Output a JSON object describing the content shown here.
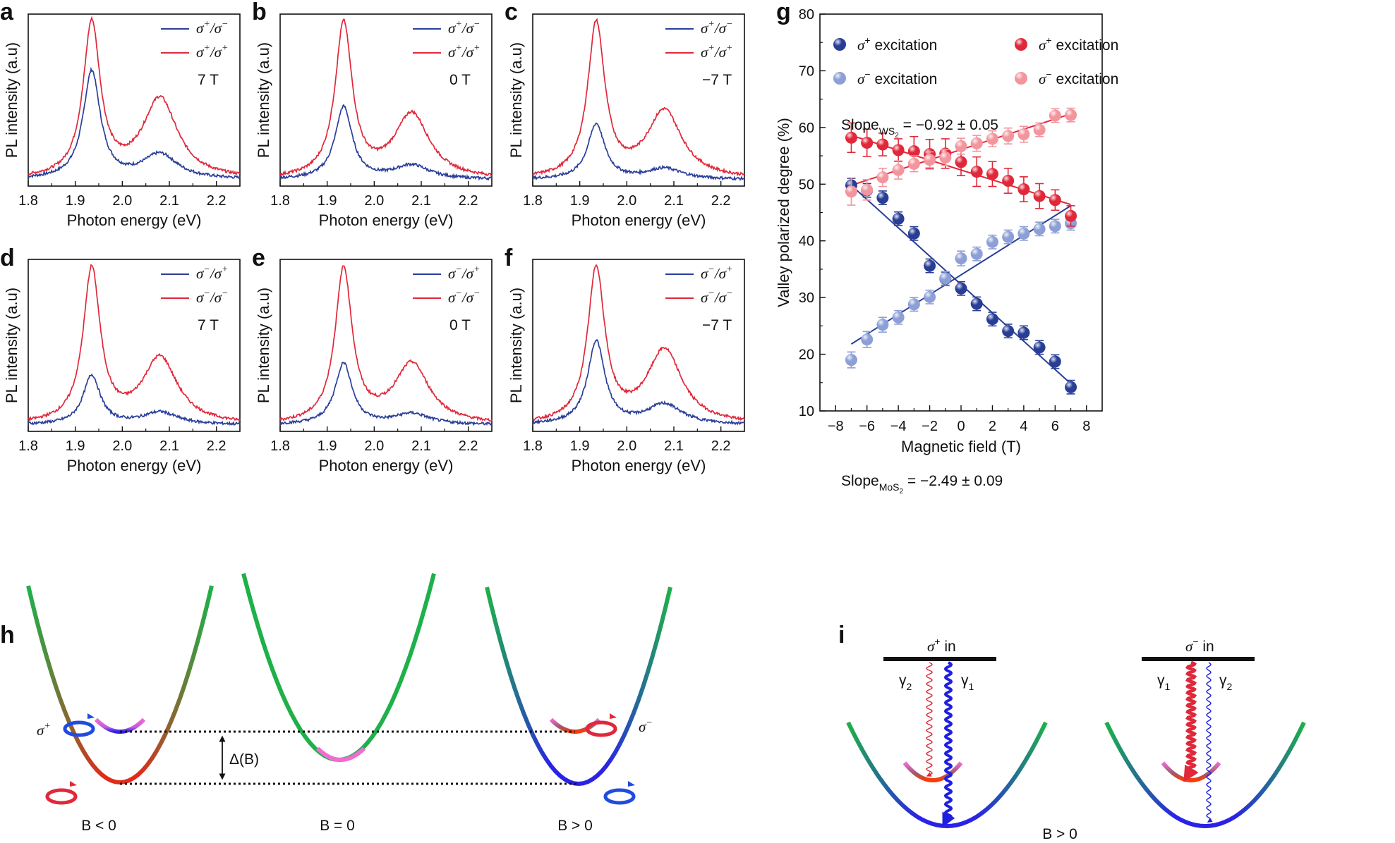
{
  "chart_data": [
    {
      "type": "line",
      "panel": "a",
      "title": "",
      "field": "7 T",
      "xlabel": "Photon energy (eV)",
      "ylabel": "PL intensity (a.u)",
      "xlim": [
        1.8,
        2.25
      ],
      "xticks": [
        "1.8",
        "1.9",
        "2.0",
        "2.1",
        "2.2"
      ],
      "series": [
        {
          "name": "σ+/σ−",
          "legend": [
            "σ",
            "+",
            "/σ",
            "−"
          ],
          "color": "#2b3f9a",
          "peak1": 0.7,
          "peak2": 0.16
        },
        {
          "name": "σ+/σ+",
          "legend": [
            "σ",
            "+",
            "/σ",
            "+"
          ],
          "color": "#e0283a",
          "peak1": 1.0,
          "peak2": 0.52
        }
      ]
    },
    {
      "type": "line",
      "panel": "b",
      "title": "",
      "field": "0 T",
      "xlabel": "Photon energy (eV)",
      "ylabel": "PL intensity (a.u)",
      "xlim": [
        1.8,
        2.25
      ],
      "xticks": [
        "1.8",
        "1.9",
        "2.0",
        "2.1",
        "2.2"
      ],
      "series": [
        {
          "name": "σ+/σ−",
          "legend": [
            "σ",
            "+",
            "/σ",
            "−"
          ],
          "color": "#2b3f9a",
          "peak1": 0.47,
          "peak2": 0.09
        },
        {
          "name": "σ+/σ+",
          "legend": [
            "σ",
            "+",
            "/σ",
            "+"
          ],
          "color": "#e0283a",
          "peak1": 1.0,
          "peak2": 0.42
        }
      ]
    },
    {
      "type": "line",
      "panel": "c",
      "title": "",
      "field": "−7 T",
      "xlabel": "Photon energy (eV)",
      "ylabel": "PL intensity (a.u)",
      "xlim": [
        1.8,
        2.25
      ],
      "xticks": [
        "1.8",
        "1.9",
        "2.0",
        "2.1",
        "2.2"
      ],
      "series": [
        {
          "name": "σ+/σ−",
          "legend": [
            "σ",
            "+",
            "/σ",
            "−"
          ],
          "color": "#2b3f9a",
          "peak1": 0.36,
          "peak2": 0.07
        },
        {
          "name": "σ+/σ+",
          "legend": [
            "σ",
            "+",
            "/σ",
            "+"
          ],
          "color": "#e0283a",
          "peak1": 1.0,
          "peak2": 0.44
        }
      ]
    },
    {
      "type": "line",
      "panel": "d",
      "title": "",
      "field": "7 T",
      "xlabel": "Photon energy (eV)",
      "ylabel": "PL intensity (a.u)",
      "xlim": [
        1.8,
        2.25
      ],
      "xticks": [
        "1.8",
        "1.9",
        "2.0",
        "2.1",
        "2.2"
      ],
      "series": [
        {
          "name": "σ−/σ+",
          "legend": [
            "σ",
            "−",
            "/σ",
            "+"
          ],
          "color": "#2b3f9a",
          "peak1": 0.32,
          "peak2": 0.08
        },
        {
          "name": "σ−/σ−",
          "legend": [
            "σ",
            "−",
            "/σ",
            "−"
          ],
          "color": "#e0283a",
          "peak1": 1.0,
          "peak2": 0.43
        }
      ]
    },
    {
      "type": "line",
      "panel": "e",
      "title": "",
      "field": "0 T",
      "xlabel": "Photon energy (eV)",
      "ylabel": "PL intensity (a.u)",
      "xlim": [
        1.8,
        2.25
      ],
      "xticks": [
        "1.8",
        "1.9",
        "2.0",
        "2.1",
        "2.2"
      ],
      "series": [
        {
          "name": "σ−/σ+",
          "legend": [
            "σ",
            "−",
            "/σ",
            "+"
          ],
          "color": "#2b3f9a",
          "peak1": 0.4,
          "peak2": 0.07
        },
        {
          "name": "σ−/σ−",
          "legend": [
            "σ",
            "−",
            "/σ",
            "−"
          ],
          "color": "#e0283a",
          "peak1": 1.0,
          "peak2": 0.39
        }
      ]
    },
    {
      "type": "line",
      "panel": "f",
      "title": "",
      "field": "−7 T",
      "xlabel": "Photon energy (eV)",
      "ylabel": "PL intensity (a.u)",
      "xlim": [
        1.8,
        2.25
      ],
      "xticks": [
        "1.8",
        "1.9",
        "2.0",
        "2.1",
        "2.2"
      ],
      "series": [
        {
          "name": "σ−/σ+",
          "legend": [
            "σ",
            "−",
            "/σ",
            "+"
          ],
          "color": "#2b3f9a",
          "peak1": 0.54,
          "peak2": 0.13
        },
        {
          "name": "σ−/σ−",
          "legend": [
            "σ",
            "−",
            "/σ",
            "−"
          ],
          "color": "#e0283a",
          "peak1": 1.0,
          "peak2": 0.48
        }
      ]
    },
    {
      "type": "scatter",
      "panel": "g",
      "title": "",
      "xlabel": "Magnetic field (T)",
      "ylabel": "Valley polarized degree (%)",
      "xlim": [
        -9,
        9
      ],
      "ylim": [
        10,
        80
      ],
      "xticks": [
        "−8",
        "−6",
        "−4",
        "−2",
        "0",
        "2",
        "4",
        "6",
        "8"
      ],
      "yticks": [
        "10",
        "20",
        "30",
        "40",
        "50",
        "60",
        "70",
        "80"
      ],
      "x": [
        -7,
        -6,
        -5,
        -4,
        -3,
        -2,
        -1,
        0,
        1,
        2,
        3,
        4,
        5,
        6,
        7
      ],
      "series": [
        {
          "name": "σ+ excitation (MoS2)",
          "label": "excitation",
          "sign": "+",
          "color": "#283e96",
          "values": [
            49.8,
            48.9,
            47.6,
            43.9,
            41.3,
            35.6,
            33.3,
            31.6,
            28.9,
            26.2,
            24.1,
            23.8,
            21.2,
            18.7,
            14.2
          ],
          "err": [
            1.2,
            1.2,
            1.2,
            1.2,
            1.2,
            1.2,
            1.2,
            1.2,
            1.2,
            1.2,
            1.2,
            1.2,
            1.2,
            1.2,
            1.2
          ]
        },
        {
          "name": "σ− excitation (MoS2)",
          "label": "excitation",
          "sign": "−",
          "color": "#8c9fd6",
          "values": [
            19.0,
            22.6,
            25.2,
            26.5,
            28.8,
            30.1,
            33.4,
            36.9,
            37.7,
            39.8,
            40.7,
            41.3,
            42.1,
            42.6,
            43.1
          ],
          "err": [
            1.4,
            1.4,
            1.3,
            1.2,
            1.2,
            1.2,
            1.2,
            1.3,
            1.2,
            1.2,
            1.2,
            1.2,
            1.2,
            1.2,
            1.2
          ]
        },
        {
          "name": "σ+ excitation (WS2)",
          "label": "excitation",
          "sign": "+",
          "color": "#e0283a",
          "values": [
            58.2,
            57.3,
            57.0,
            56.0,
            55.8,
            55.3,
            55.4,
            53.9,
            52.2,
            51.8,
            50.6,
            49.1,
            47.9,
            47.2,
            44.4
          ],
          "err": [
            2.6,
            2.4,
            2.0,
            2.0,
            2.6,
            2.6,
            2.6,
            2.4,
            2.6,
            2.2,
            2.2,
            2.2,
            2.2,
            1.8,
            1.8
          ]
        },
        {
          "name": "σ− excitation (WS2)",
          "label": "excitation",
          "sign": "−",
          "color": "#f2959d",
          "values": [
            48.7,
            49.0,
            51.2,
            52.5,
            53.6,
            54.3,
            54.7,
            56.7,
            57.2,
            58.0,
            58.5,
            58.8,
            59.6,
            62.1,
            62.2
          ],
          "err": [
            2.4,
            1.8,
            1.6,
            1.6,
            1.4,
            1.4,
            1.4,
            1.4,
            1.4,
            1.4,
            1.4,
            1.4,
            1.2,
            1.2,
            1.2
          ]
        }
      ],
      "fits": [
        {
          "name": "σ+ MoS2 fit",
          "color": "#283e96",
          "from": [
            -7,
            49.8
          ],
          "to": [
            7,
            14.8
          ]
        },
        {
          "name": "σ− MoS2 fit",
          "color": "#283e96",
          "from": [
            -7,
            21.8
          ],
          "to": [
            7,
            46.2
          ]
        },
        {
          "name": "σ+ WS2 fit",
          "color": "#e0283a",
          "from": [
            -7,
            58.6
          ],
          "to": [
            7,
            46.4
          ]
        },
        {
          "name": "σ− WS2 fit",
          "color": "#e0283a",
          "from": [
            -7,
            49.8
          ],
          "to": [
            7,
            62.4
          ]
        }
      ],
      "annotations": {
        "slope_ws2": {
          "word": "Slope",
          "sub": "WS",
          "subsub": "2",
          "value": " = −0.92 ± 0.05"
        },
        "slope_mos2": {
          "word": "Slope",
          "sub": "MoS",
          "subsub": "2",
          "value": " = −2.49 ± 0.09"
        }
      }
    }
  ],
  "panel_labels": [
    "a",
    "b",
    "c",
    "d",
    "e",
    "f",
    "g",
    "h",
    "i"
  ],
  "panel_h": {
    "left": "B < 0",
    "middle": "B = 0",
    "right": "B > 0",
    "gap": "Δ(B)",
    "sigma_plus": "σ",
    "sigma_plus_sup": "+",
    "sigma_minus": "σ",
    "sigma_minus_sup": "−"
  },
  "panel_i": {
    "left_title": "σ",
    "left_title_sup": "+",
    "left_title_tail": " in",
    "right_title": "σ",
    "right_title_sup": "−",
    "right_title_tail": " in",
    "gamma": "γ",
    "sub1": "1",
    "sub2": "2",
    "field": "B > 0"
  },
  "colors": {
    "blue": "#2b3f9a",
    "red": "#e0283a",
    "magenta": "#f26bd2",
    "green": "#1fb04a"
  }
}
